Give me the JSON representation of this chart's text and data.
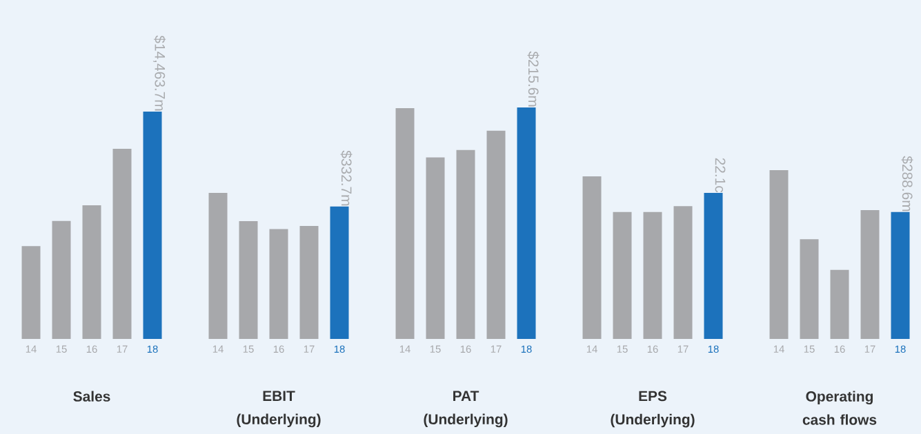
{
  "chart_data": [
    {
      "type": "bar",
      "title": "Sales",
      "categories": [
        "14",
        "15",
        "16",
        "17",
        "18"
      ],
      "values": [
        5900,
        7500,
        8500,
        12100,
        14463.7
      ],
      "colors": [
        "#a7a8ab",
        "#a7a8ab",
        "#a7a8ab",
        "#a7a8ab",
        "#1c72bc"
      ],
      "value_labels": [
        null,
        null,
        null,
        null,
        "$14,463.7m"
      ]
    },
    {
      "type": "bar",
      "title": "EBIT (Underlying)",
      "categories": [
        "14",
        "15",
        "16",
        "17",
        "18"
      ],
      "values": [
        367,
        296,
        276,
        284,
        332.7
      ],
      "colors": [
        "#a7a8ab",
        "#a7a8ab",
        "#a7a8ab",
        "#a7a8ab",
        "#1c72bc"
      ],
      "value_labels": [
        null,
        null,
        null,
        null,
        "$332.7m"
      ]
    },
    {
      "type": "bar",
      "title": "PAT (Underlying)",
      "categories": [
        "14",
        "15",
        "16",
        "17",
        "18"
      ],
      "values": [
        215,
        169,
        176,
        194,
        215.6
      ],
      "colors": [
        "#a7a8ab",
        "#a7a8ab",
        "#a7a8ab",
        "#a7a8ab",
        "#1c72bc"
      ],
      "value_labels": [
        null,
        null,
        null,
        null,
        "$215.6m"
      ]
    },
    {
      "type": "bar",
      "title": "EPS (Underlying)",
      "categories": [
        "14",
        "15",
        "16",
        "17",
        "18"
      ],
      "values": [
        24.6,
        19.2,
        19.2,
        20.1,
        22.1
      ],
      "colors": [
        "#a7a8ab",
        "#a7a8ab",
        "#a7a8ab",
        "#a7a8ab",
        "#1c72bc"
      ],
      "value_labels": [
        null,
        null,
        null,
        null,
        "22.1c"
      ]
    },
    {
      "type": "bar",
      "title": "Operating cash flows",
      "categories": [
        "14",
        "15",
        "16",
        "17",
        "18"
      ],
      "values": [
        384,
        227,
        157,
        293,
        288.6
      ],
      "colors": [
        "#a7a8ab",
        "#a7a8ab",
        "#a7a8ab",
        "#a7a8ab",
        "#1c72bc"
      ],
      "value_labels": [
        null,
        null,
        null,
        null,
        "$288.6m"
      ]
    }
  ]
}
